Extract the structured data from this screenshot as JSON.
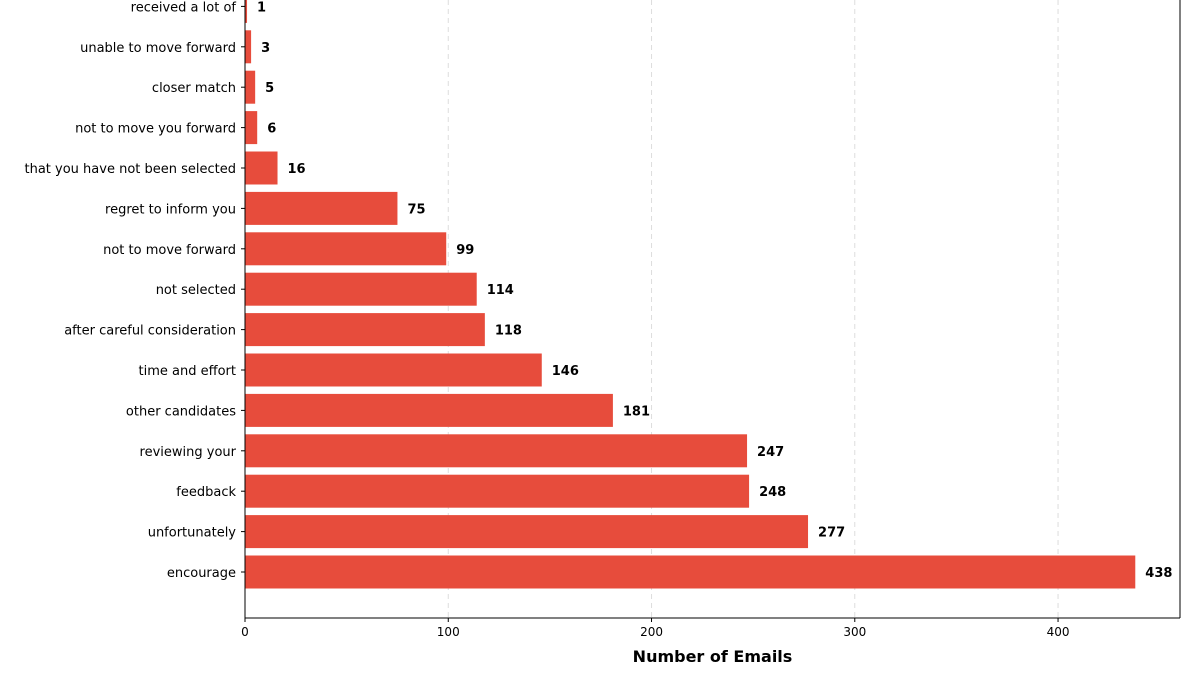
{
  "chart_data": {
    "type": "bar",
    "orientation": "horizontal",
    "categories": [
      "encourage",
      "unfortunately",
      "feedback",
      "reviewing your",
      "other candidates",
      "time and effort",
      "after careful consideration",
      "not selected",
      "not to move forward",
      "regret to inform you",
      "that you have not been selected",
      "not to move you forward",
      "closer match",
      "unable to move forward",
      "received a lot of"
    ],
    "values": [
      438,
      277,
      248,
      247,
      181,
      146,
      118,
      114,
      99,
      75,
      16,
      6,
      5,
      3,
      1
    ],
    "xlabel": "Number of Emails",
    "ylabel": "",
    "xlim": [
      0,
      460
    ],
    "xticks": [
      0,
      100,
      200,
      300,
      400
    ],
    "grid": "x-dashed",
    "bar_color": "#e74c3c",
    "data_labels": true
  }
}
